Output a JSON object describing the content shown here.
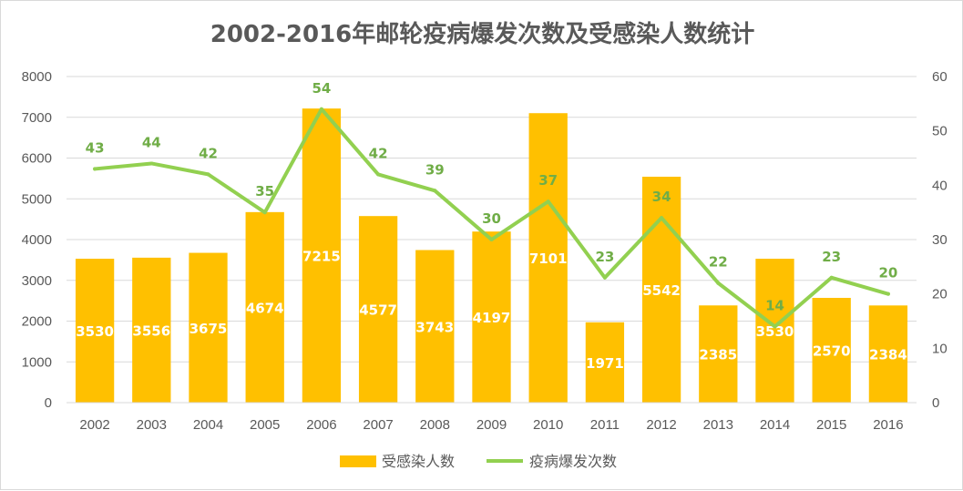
{
  "chart_data": {
    "type": "bar",
    "title": "2002-2016年邮轮疫病爆发次数及受感染人数统计",
    "categories": [
      "2002",
      "2003",
      "2004",
      "2005",
      "2006",
      "2007",
      "2008",
      "2009",
      "2010",
      "2011",
      "2012",
      "2013",
      "2014",
      "2015",
      "2016"
    ],
    "series": [
      {
        "name": "受感染人数",
        "type": "bar",
        "axis": "left",
        "color": "#ffc000",
        "values": [
          3530,
          3556,
          3675,
          4674,
          7215,
          4577,
          3743,
          4197,
          7101,
          1971,
          5542,
          2385,
          3530,
          2570,
          2384
        ],
        "bar_heights_read_from_axis": [
          3530,
          3556,
          3675,
          4674,
          7215,
          4577,
          3743,
          4197,
          7101,
          1971,
          5542,
          2385,
          3530,
          2570,
          2384
        ]
      },
      {
        "name": "疫病爆发次数",
        "type": "line",
        "axis": "right",
        "color": "#92d050",
        "label_color": "#70ad47",
        "values": [
          43,
          44,
          42,
          35,
          54,
          42,
          39,
          30,
          37,
          23,
          34,
          22,
          14,
          23,
          20
        ]
      }
    ],
    "y_left": {
      "min": 0,
      "max": 8000,
      "step": 1000,
      "ticks": [
        "0",
        "1000",
        "2000",
        "3000",
        "4000",
        "5000",
        "6000",
        "7000",
        "8000"
      ]
    },
    "y_right": {
      "min": 0,
      "max": 60,
      "step": 10,
      "ticks": [
        "0",
        "10",
        "20",
        "30",
        "40",
        "50",
        "60"
      ]
    },
    "grid": true,
    "legend_position": "bottom",
    "xlabel": "",
    "ylabel": ""
  }
}
